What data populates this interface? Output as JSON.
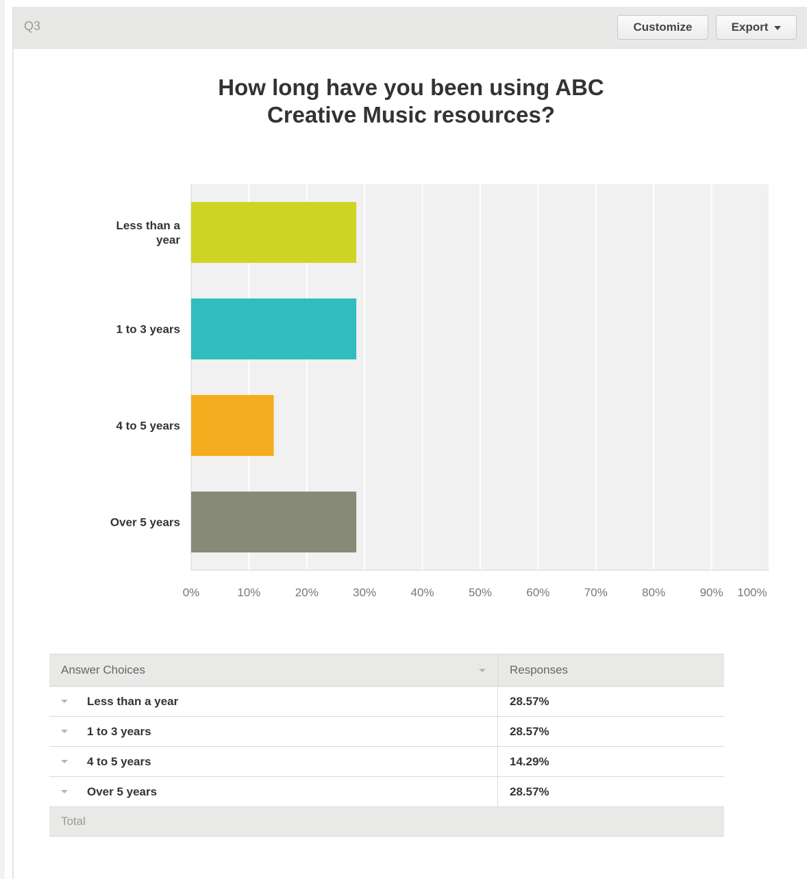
{
  "question": {
    "label": "Q3"
  },
  "toolbar": {
    "customize_label": "Customize",
    "export_label": "Export"
  },
  "chart_data": {
    "type": "bar",
    "orientation": "horizontal",
    "title_lines": [
      "How long have you been using ABC",
      "Creative Music resources?"
    ],
    "categories": [
      "Less than a year",
      "1 to 3 years",
      "4 to 5 years",
      "Over 5 years"
    ],
    "category_label_lines": [
      [
        "Less than a",
        "year"
      ],
      [
        "1 to 3 years"
      ],
      [
        "4 to 5 years"
      ],
      [
        "Over 5 years"
      ]
    ],
    "values": [
      28.57,
      28.57,
      14.29,
      28.57
    ],
    "colors": [
      "#cdd424",
      "#31bcbe",
      "#f5ad1f",
      "#888a78"
    ],
    "xlim": [
      0,
      100
    ],
    "x_ticks": [
      0,
      10,
      20,
      30,
      40,
      50,
      60,
      70,
      80,
      90,
      100
    ],
    "x_tick_labels": [
      "0%",
      "10%",
      "20%",
      "30%",
      "40%",
      "50%",
      "60%",
      "70%",
      "80%",
      "90%",
      "100%"
    ],
    "grid": true,
    "plot_background": "#f1f1f1"
  },
  "table": {
    "headers": {
      "choices": "Answer Choices",
      "responses": "Responses"
    },
    "rows": [
      {
        "choice": "Less than a year",
        "response": "28.57%"
      },
      {
        "choice": "1 to 3 years",
        "response": "28.57%"
      },
      {
        "choice": "4 to 5 years",
        "response": "14.29%"
      },
      {
        "choice": "Over 5 years",
        "response": "28.57%"
      }
    ],
    "total_label": "Total"
  }
}
